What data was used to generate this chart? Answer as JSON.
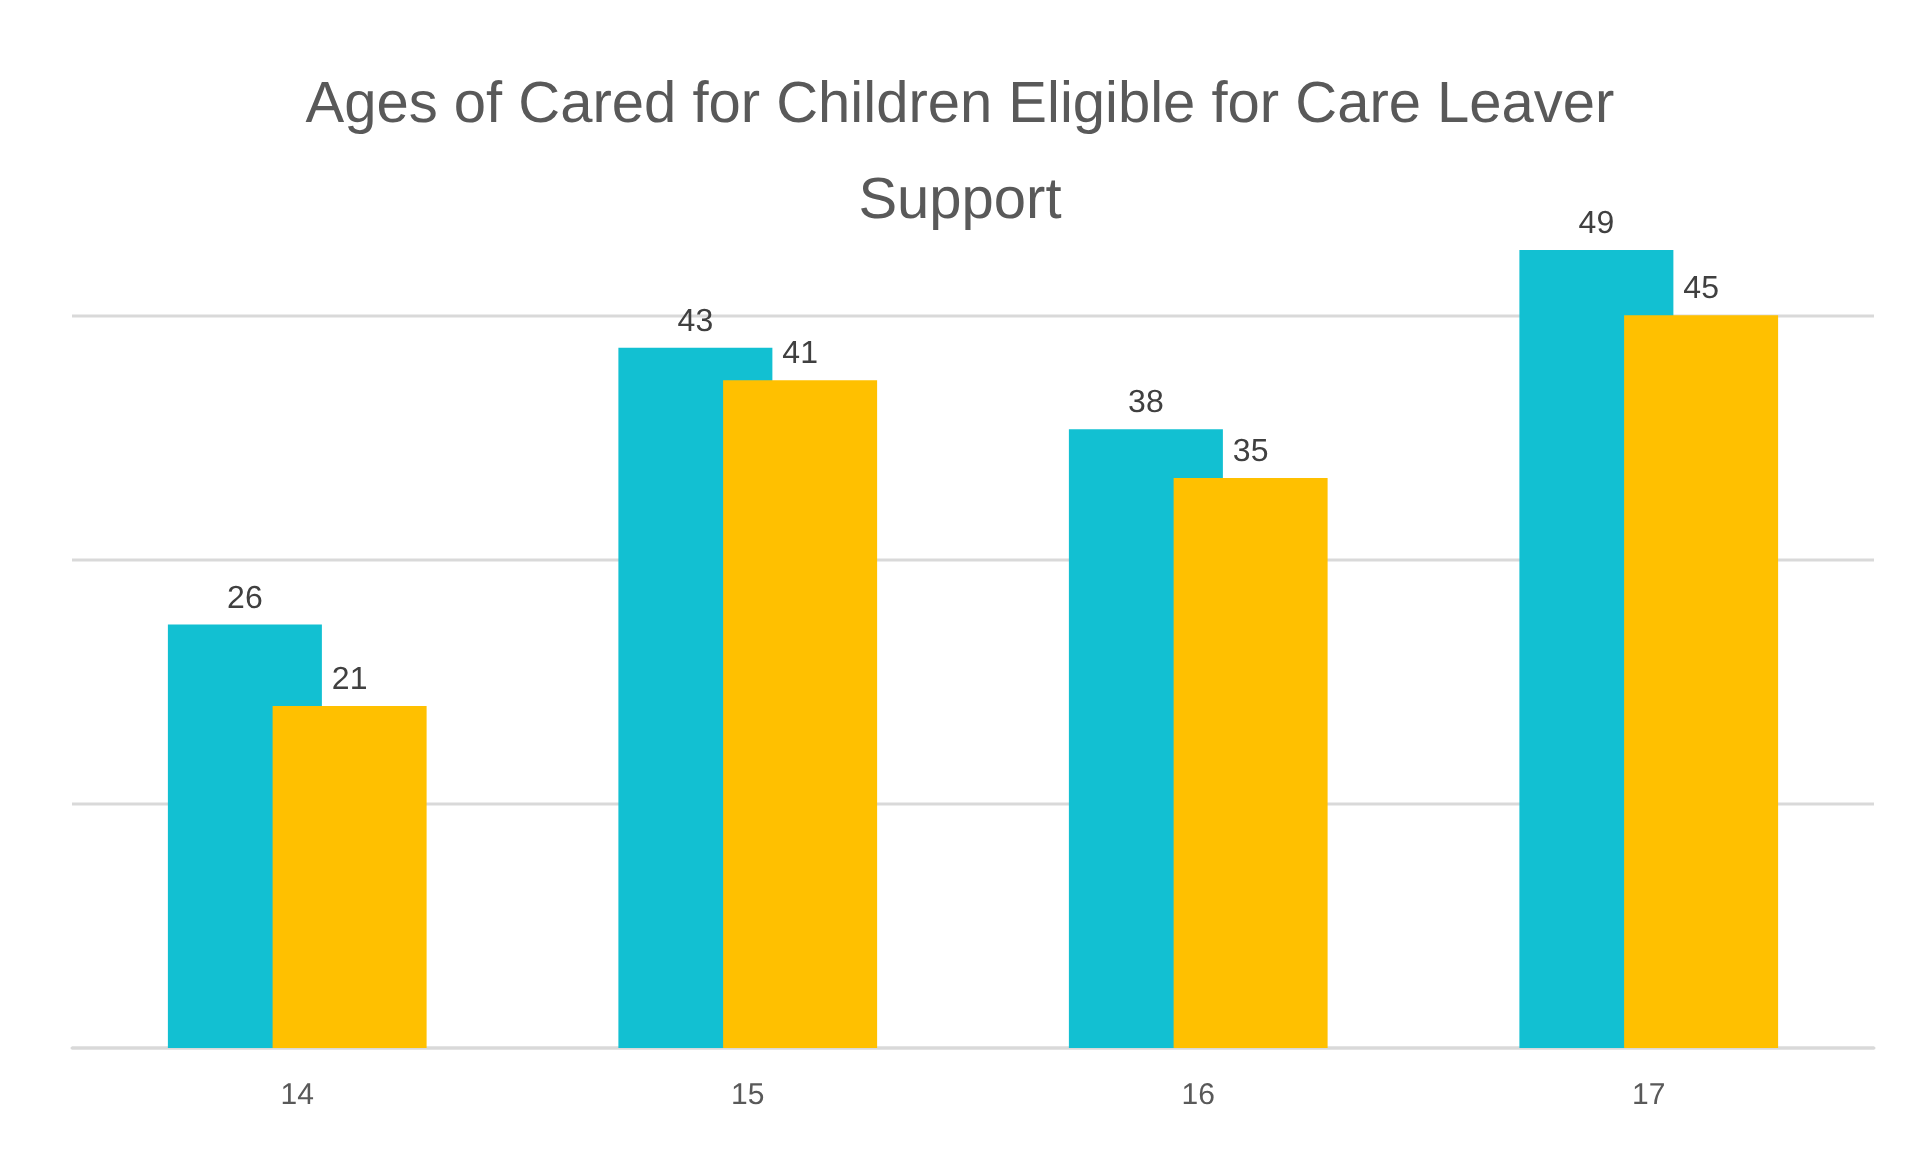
{
  "chart_data": {
    "type": "bar",
    "title": "Ages of Cared for Children Eligible for Care Leaver Support",
    "categories": [
      "14",
      "15",
      "16",
      "17"
    ],
    "series": [
      {
        "color": "#12c0d2",
        "values": [
          26,
          43,
          38,
          49
        ]
      },
      {
        "color": "#ffc000",
        "values": [
          21,
          41,
          35,
          45
        ]
      }
    ],
    "yticks": [
      0,
      15,
      30,
      45
    ],
    "grid": "y",
    "tick_labels": "x",
    "data_labels": true
  }
}
